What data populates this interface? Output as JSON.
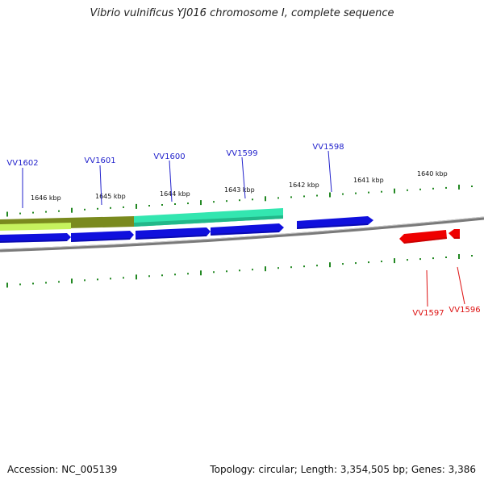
{
  "title": "Vibrio vulnificus YJ016 chromosome I, complete sequence",
  "footer": {
    "accession": "Accession: NC_005139",
    "summary": "Topology: circular; Length: 3,354,505 bp; Genes: 3,386"
  },
  "colors": {
    "forward_gene": "#1010dd",
    "reverse_gene": "#ee0000",
    "forward_label": "#2222cc",
    "reverse_label": "#dd1111",
    "tick": "#228822",
    "backbone": "#888888",
    "feature_olive": "#7a8a1e",
    "feature_lightgreen": "#c8f060",
    "feature_teal": "#33e6b0"
  },
  "kbp_labels": [
    "1646 kbp",
    "1645 kbp",
    "1644 kbp",
    "1643 kbp",
    "1642 kbp",
    "1641 kbp",
    "1640 kbp"
  ],
  "genes_forward": [
    "VV1602",
    "VV1601",
    "VV1600",
    "VV1599",
    "VV1598"
  ],
  "genes_reverse": [
    "VV1597",
    "VV1596"
  ]
}
